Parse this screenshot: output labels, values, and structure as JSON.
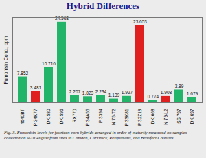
{
  "chart_data": {
    "type": "bar",
    "title": "Hybrid Differences",
    "y_label": "Fumonisin Conc., ppm",
    "caption": "Fig. 3.  Fumonisin levels for fourteen corn hybrids arranged in order of maturity measured on samples collected on 9-10 August from sites in Camden, Currituck, Perquimans, and Beaufort Counties.",
    "categories": [
      "4640BT",
      "P 34K77",
      "DK 580",
      "DK 595",
      "RX770",
      "P 34A55",
      "P 3394",
      "N 75-T2",
      "P 33K81",
      "P 32Z18",
      "DK 668",
      "N 79-L2",
      "SS 797",
      "DK 697"
    ],
    "values": [
      7.852,
      3.481,
      10.716,
      24.568,
      2.207,
      1.823,
      2.234,
      1.139,
      1.927,
      23.653,
      0.774,
      1.908,
      3.89,
      1.679
    ],
    "colors": [
      "#22b56a",
      "#e0201e",
      "#22b56a",
      "#22b56a",
      "#22b56a",
      "#22b56a",
      "#22b56a",
      "#22b56a",
      "#22b56a",
      "#e0201e",
      "#22b56a",
      "#e0201e",
      "#22b56a",
      "#22b56a"
    ],
    "ylim": [
      0,
      26
    ],
    "tick_labels": "x",
    "data_labels": true
  }
}
